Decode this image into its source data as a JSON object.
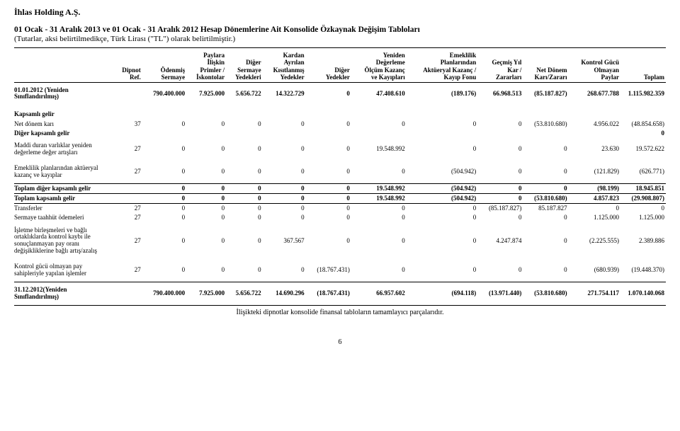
{
  "company": "İhlas Holding A.Ş.",
  "title_line1": "01 Ocak - 31 Aralık 2013 ve 01 Ocak - 31 Aralık 2012 Hesap Dönemlerine Ait Konsolide Özkaynak Değişim Tabloları",
  "title_line2": "(Tutarlar, aksi belirtilmedikçe, Türk Lirası (\"TL\") olarak belirtilmiştir.)",
  "footnote": "İlişikteki dipnotlar konsolide finansal tabloların tamamlayıcı parçalarıdır.",
  "page_number": "6",
  "columns": [
    "",
    "Dipnot\nRef.",
    "Ödenmiş\nSermaye",
    "Paylara\nİlişkin\nPrimler /\nİskontolar",
    "Diğer\nSermaye\nYedekleri",
    "Kardan\nAyrılan\nKısıtlanmış\nYedekler",
    "Diğer\nYedekler",
    "Yeniden\nDeğerleme\nÖlçüm Kazanç\nve Kayıpları",
    "Emeklilik\nPlanlarından\nAktüeryal Kazanç /\nKayıp Fonu",
    "Geçmiş Yıl\nKar /\nZararları",
    "Net Dönem\nKarı/Zararı",
    "Kontrol Gücü\nOlmayan\nPaylar",
    "Toplam"
  ],
  "rows": [
    {
      "label": "01.01.2012 (Yeniden\nSınıflandırılmış)",
      "bold": true,
      "c": [
        "",
        "790.400.000",
        "7.925.000",
        "5.656.722",
        "14.322.729",
        "0",
        "47.408.610",
        "(189.176)",
        "66.968.513",
        "(85.187.827)",
        "268.677.788",
        "1.115.982.359"
      ]
    },
    {
      "section": "Kapsamlı gelir"
    },
    {
      "label": "Net dönem karı",
      "c": [
        "37",
        "0",
        "0",
        "0",
        "0",
        "0",
        "0",
        "0",
        "0",
        "(53.810.680)",
        "4.956.022",
        "(48.854.658)"
      ]
    },
    {
      "label": "Diğer kapsamlı gelir",
      "bold": true,
      "c": [
        "",
        "",
        "",
        "",
        "",
        "",
        "",
        "",
        "",
        "",
        "",
        "0"
      ]
    },
    {
      "label": "Maddi duran varlıklar yeniden\ndeğerleme değer artışları",
      "c": [
        "27",
        "0",
        "0",
        "0",
        "0",
        "0",
        "19.548.992",
        "0",
        "0",
        "0",
        "23.630",
        "19.572.622"
      ]
    },
    {
      "label": "Emeklilik planlarından aktüeryal\nkazanç ve kayıplar",
      "c": [
        "27",
        "0",
        "0",
        "0",
        "0",
        "0",
        "0",
        "(504.942)",
        "0",
        "0",
        "(121.829)",
        "(626.771)"
      ]
    },
    {
      "label": "Toplam diğer kapsamlı gelir",
      "bold": true,
      "topline": true,
      "underline": true,
      "c": [
        "",
        "0",
        "0",
        "0",
        "0",
        "0",
        "19.548.992",
        "(504.942)",
        "0",
        "0",
        "(98.199)",
        "18.945.851"
      ]
    },
    {
      "label": "Toplam kapsamlı gelir",
      "bold": true,
      "underline": true,
      "c": [
        "",
        "0",
        "0",
        "0",
        "0",
        "0",
        "19.548.992",
        "(504.942)",
        "0",
        "(53.810.680)",
        "4.857.823",
        "(29.908.807)"
      ]
    },
    {
      "label": "Transferler",
      "c": [
        "27",
        "0",
        "0",
        "0",
        "0",
        "0",
        "0",
        "0",
        "(85.187.827)",
        "85.187.827",
        "0",
        "0"
      ]
    },
    {
      "label": "Sermaye taahhüt ödemeleri",
      "c": [
        "27",
        "0",
        "0",
        "0",
        "0",
        "0",
        "0",
        "0",
        "0",
        "0",
        "1.125.000",
        "1.125.000"
      ]
    },
    {
      "label": "İşletme birleşmeleri ve bağlı\nortaklıklarda kontrol kaybı ile\nsonuçlanmayan pay oranı\ndeğişikliklerine bağlı artış/azalış",
      "c": [
        "27",
        "0",
        "0",
        "0",
        "367.567",
        "0",
        "0",
        "0",
        "4.247.874",
        "0",
        "(2.225.555)",
        "2.389.886"
      ]
    },
    {
      "label": "Kontrol gücü olmayan pay\nsahipleriyle yapılan işlemler",
      "underline": true,
      "c": [
        "27",
        "0",
        "0",
        "0",
        "0",
        "(18.767.431)",
        "0",
        "0",
        "0",
        "0",
        "(680.939)",
        "(19.448.370)"
      ]
    },
    {
      "label": "31.12.2012(Yeniden\nSınıflandırılmış)",
      "bold": true,
      "underline": true,
      "c": [
        "",
        "790.400.000",
        "7.925.000",
        "5.656.722",
        "14.690.296",
        "(18.767.431)",
        "66.957.602",
        "(694.118)",
        "(13.971.440)",
        "(53.810.680)",
        "271.754.117",
        "1.070.140.068"
      ]
    }
  ]
}
